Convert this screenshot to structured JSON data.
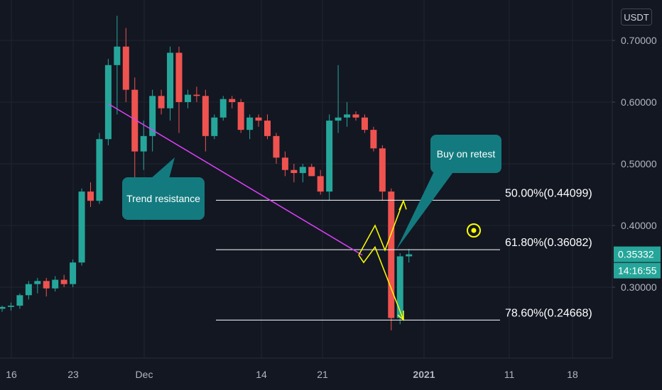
{
  "currency": "USDT",
  "chart_data": {
    "type": "candlestick",
    "x_ticks": [
      "16",
      "23",
      "Dec",
      "14",
      "21",
      "2021",
      "11",
      "18"
    ],
    "y_ticks": [
      "0.70000",
      "0.60000",
      "0.50000",
      "0.40000",
      "0.30000"
    ],
    "ylim": [
      0.22,
      0.75
    ],
    "last_price_label": "0.35332",
    "countdown_label": "14:16:55",
    "candles": [
      [
        0.265,
        0.27,
        0.26,
        0.268
      ],
      [
        0.268,
        0.275,
        0.262,
        0.27
      ],
      [
        0.27,
        0.29,
        0.265,
        0.287
      ],
      [
        0.287,
        0.31,
        0.28,
        0.305
      ],
      [
        0.305,
        0.315,
        0.29,
        0.31
      ],
      [
        0.31,
        0.315,
        0.285,
        0.298
      ],
      [
        0.298,
        0.318,
        0.293,
        0.312
      ],
      [
        0.312,
        0.32,
        0.3,
        0.305
      ],
      [
        0.305,
        0.345,
        0.3,
        0.34
      ],
      [
        0.34,
        0.46,
        0.335,
        0.455
      ],
      [
        0.455,
        0.47,
        0.43,
        0.44
      ],
      [
        0.44,
        0.55,
        0.435,
        0.54
      ],
      [
        0.54,
        0.67,
        0.53,
        0.66
      ],
      [
        0.66,
        0.74,
        0.58,
        0.69
      ],
      [
        0.69,
        0.72,
        0.6,
        0.62
      ],
      [
        0.62,
        0.64,
        0.46,
        0.52
      ],
      [
        0.52,
        0.57,
        0.49,
        0.545
      ],
      [
        0.545,
        0.62,
        0.52,
        0.61
      ],
      [
        0.61,
        0.62,
        0.58,
        0.59
      ],
      [
        0.59,
        0.69,
        0.57,
        0.68
      ],
      [
        0.68,
        0.69,
        0.55,
        0.6
      ],
      [
        0.6,
        0.62,
        0.59,
        0.612
      ],
      [
        0.612,
        0.625,
        0.6,
        0.61
      ],
      [
        0.61,
        0.62,
        0.52,
        0.545
      ],
      [
        0.545,
        0.58,
        0.54,
        0.575
      ],
      [
        0.575,
        0.61,
        0.57,
        0.605
      ],
      [
        0.605,
        0.61,
        0.59,
        0.6
      ],
      [
        0.6,
        0.605,
        0.55,
        0.555
      ],
      [
        0.555,
        0.58,
        0.54,
        0.575
      ],
      [
        0.575,
        0.58,
        0.56,
        0.57
      ],
      [
        0.57,
        0.58,
        0.54,
        0.545
      ],
      [
        0.545,
        0.55,
        0.5,
        0.51
      ],
      [
        0.51,
        0.52,
        0.48,
        0.49
      ],
      [
        0.49,
        0.5,
        0.47,
        0.485
      ],
      [
        0.485,
        0.5,
        0.47,
        0.495
      ],
      [
        0.495,
        0.5,
        0.48,
        0.48
      ],
      [
        0.48,
        0.49,
        0.45,
        0.455
      ],
      [
        0.455,
        0.58,
        0.44,
        0.57
      ],
      [
        0.57,
        0.66,
        0.55,
        0.575
      ],
      [
        0.575,
        0.6,
        0.56,
        0.58
      ],
      [
        0.58,
        0.585,
        0.57,
        0.575
      ],
      [
        0.575,
        0.58,
        0.55,
        0.555
      ],
      [
        0.555,
        0.56,
        0.52,
        0.525
      ],
      [
        0.525,
        0.53,
        0.44,
        0.455
      ],
      [
        0.455,
        0.46,
        0.23,
        0.25
      ],
      [
        0.25,
        0.355,
        0.24,
        0.35
      ],
      [
        0.35,
        0.362,
        0.34,
        0.3533
      ]
    ]
  },
  "fibonacci_levels": [
    {
      "value": 0.44099,
      "label": "50.00%(0.44099)"
    },
    {
      "value": 0.36082,
      "label": "61.80%(0.36082)"
    },
    {
      "value": 0.24668,
      "label": "78.60%(0.24668)"
    }
  ],
  "annotations": {
    "trend_label": "Trend resistance",
    "buy_label": "Buy on retest"
  },
  "colors": {
    "up": "#26a69a",
    "down": "#ef5350",
    "background": "#131722",
    "trendline": "#e040fb",
    "projection": "#ffff00",
    "callout": "#137b7f",
    "fib_line": "#ffffff"
  }
}
